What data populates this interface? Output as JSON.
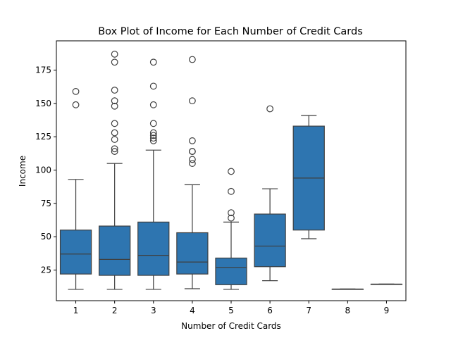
{
  "chart_data": {
    "type": "box",
    "title": "Box Plot of Income for Each Number of Credit Cards",
    "xlabel": "Number of Credit Cards",
    "ylabel": "Income",
    "ylim": [
      2,
      197
    ],
    "yticks": [
      25,
      50,
      75,
      100,
      125,
      150,
      175
    ],
    "box_color": "#2e75b0",
    "grid": false,
    "boxes": [
      {
        "category": "1",
        "whisker_low": 10.5,
        "q1": 22,
        "median": 37,
        "q3": 55,
        "whisker_high": 93,
        "outliers": [
          149,
          159
        ]
      },
      {
        "category": "2",
        "whisker_low": 10.5,
        "q1": 21,
        "median": 33,
        "q3": 58,
        "whisker_high": 105,
        "outliers": [
          114,
          116,
          123,
          128,
          135,
          148,
          152,
          160,
          181,
          187
        ]
      },
      {
        "category": "3",
        "whisker_low": 10.5,
        "q1": 21,
        "median": 36,
        "q3": 61,
        "whisker_high": 115,
        "outliers": [
          122,
          124,
          126,
          128,
          135,
          149,
          163,
          181
        ]
      },
      {
        "category": "4",
        "whisker_low": 11,
        "q1": 22,
        "median": 31,
        "q3": 53,
        "whisker_high": 89,
        "outliers": [
          105,
          108,
          114,
          114,
          122,
          152,
          183
        ]
      },
      {
        "category": "5",
        "whisker_low": 10.5,
        "q1": 14,
        "median": 27,
        "q3": 34,
        "whisker_high": 61,
        "outliers": [
          64,
          68,
          84,
          99
        ]
      },
      {
        "category": "6",
        "whisker_low": 17,
        "q1": 27.5,
        "median": 43,
        "q3": 67,
        "whisker_high": 86,
        "outliers": [
          146
        ]
      },
      {
        "category": "7",
        "whisker_low": 48.5,
        "q1": 55,
        "median": 94,
        "q3": 133,
        "whisker_high": 141,
        "outliers": []
      },
      {
        "category": "8",
        "whisker_low": 10.7,
        "q1": 10.7,
        "median": 10.7,
        "q3": 10.7,
        "whisker_high": 10.7,
        "outliers": []
      },
      {
        "category": "9",
        "whisker_low": 14.4,
        "q1": 14.4,
        "median": 14.4,
        "q3": 14.4,
        "whisker_high": 14.4,
        "outliers": []
      }
    ]
  }
}
